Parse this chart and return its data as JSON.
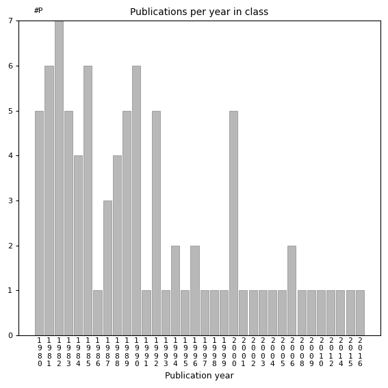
{
  "title": "Publications per year in class",
  "xlabel": "Publication year",
  "ylabel_annotation": "#P",
  "bar_color": "#b8b8b8",
  "bar_edgecolor": "#888888",
  "years": [
    "1980",
    "1981",
    "1982",
    "1983",
    "1984",
    "1985",
    "1986",
    "1987",
    "1988",
    "1989",
    "1990",
    "1991",
    "1992",
    "1993",
    "1994",
    "1995",
    "1996",
    "1997",
    "1998",
    "1999",
    "2000",
    "2001",
    "2002",
    "2003",
    "2004",
    "2005",
    "2006",
    "2008",
    "2009",
    "2010",
    "2012",
    "2014",
    "2015",
    "2016"
  ],
  "values": [
    5,
    6,
    7,
    5,
    4,
    6,
    1,
    3,
    4,
    5,
    6,
    1,
    5,
    1,
    2,
    1,
    2,
    1,
    1,
    1,
    5,
    1,
    1,
    1,
    1,
    1,
    2,
    1,
    1,
    1,
    1,
    1,
    1,
    1
  ],
  "ylim": [
    0,
    7
  ],
  "yticks": [
    0,
    1,
    2,
    3,
    4,
    5,
    6,
    7
  ],
  "figsize": [
    5.67,
    5.67
  ],
  "dpi": 100,
  "title_fontsize": 10,
  "xlabel_fontsize": 9,
  "tick_fontsize": 8
}
